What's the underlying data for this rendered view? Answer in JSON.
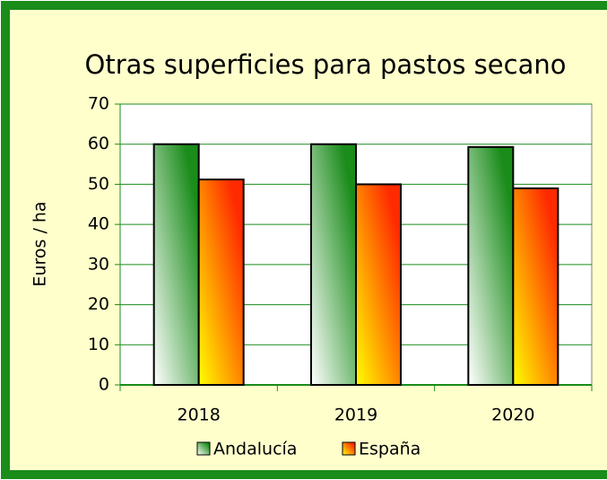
{
  "chart_data": {
    "type": "bar",
    "title": "Otras superficies para pastos secano",
    "y_label": "Euros / ha",
    "categories": [
      "2018",
      "2019",
      "2020"
    ],
    "series": [
      {
        "name": "Andalucía",
        "color": "#1a8c1a",
        "values": [
          60,
          60,
          59.3
        ]
      },
      {
        "name": "España",
        "color": "#ff2a00",
        "values": [
          51.2,
          50,
          49
        ]
      }
    ],
    "ylim": [
      0,
      70
    ],
    "yticks": [
      0,
      10,
      20,
      30,
      40,
      50,
      60,
      70
    ],
    "grid": true,
    "legend": "bottom"
  }
}
